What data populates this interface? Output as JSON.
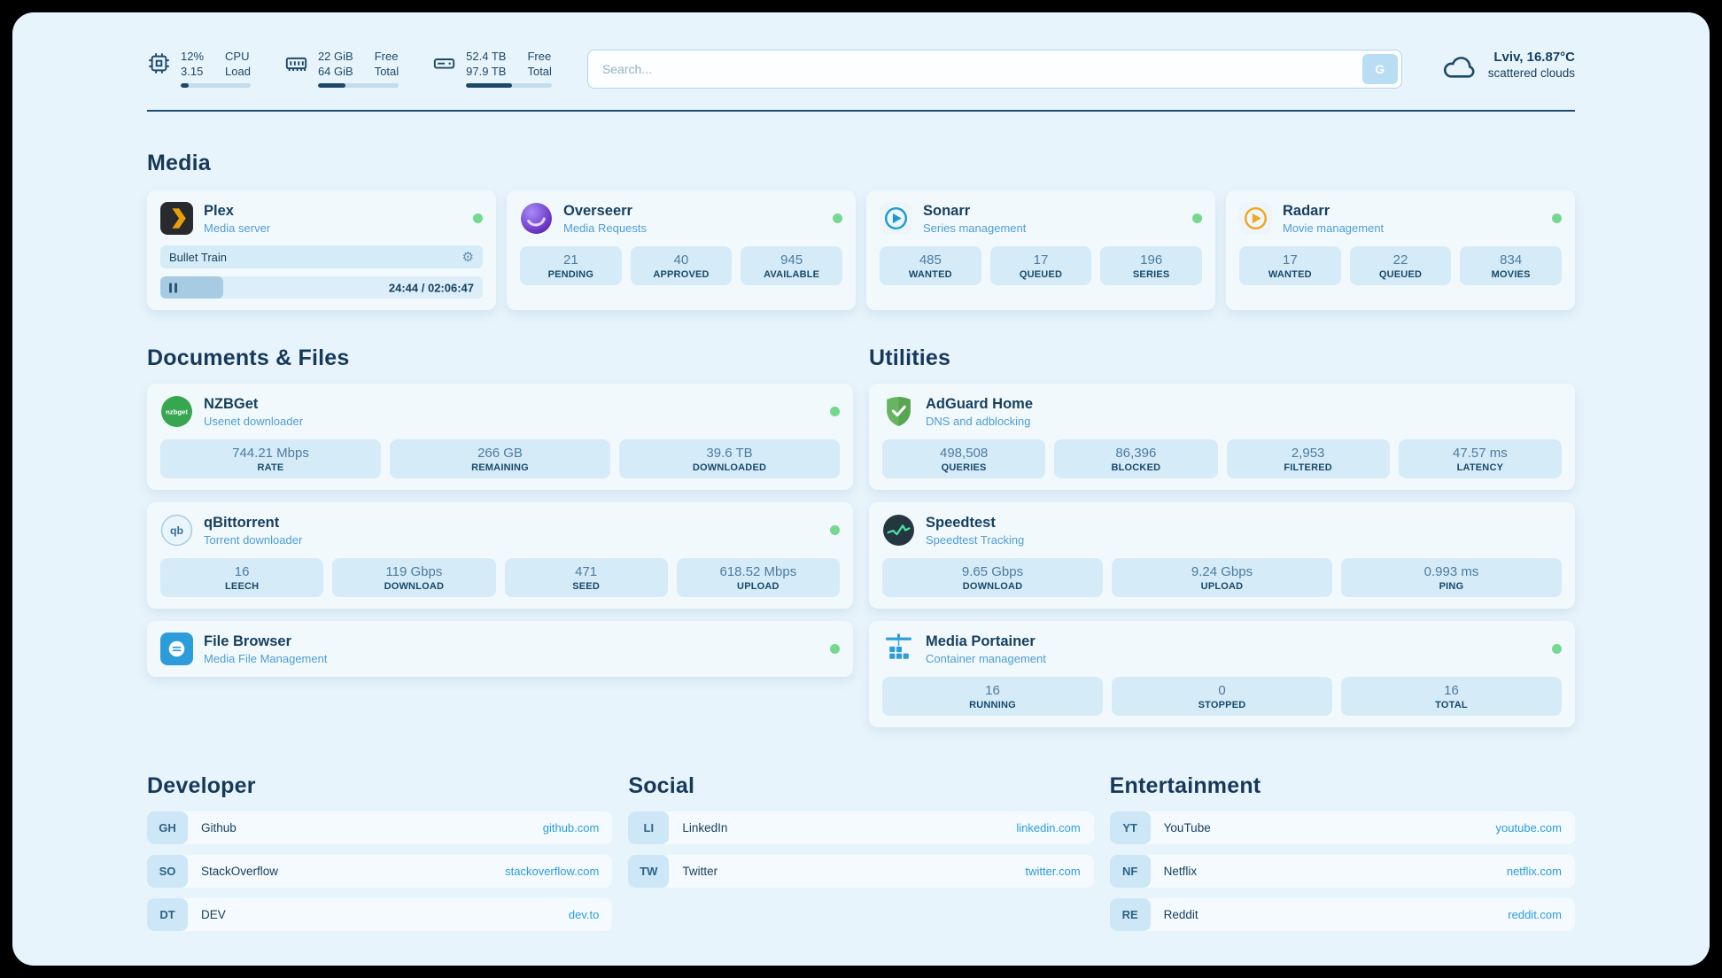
{
  "topbar": {
    "metrics": [
      {
        "values": [
          "12%",
          "3.15"
        ],
        "labels": [
          "CPU",
          "Load"
        ],
        "percent": 12
      },
      {
        "values": [
          "22 GiB",
          "64 GiB"
        ],
        "labels": [
          "Free",
          "Total"
        ],
        "percent": 34
      },
      {
        "values": [
          "52.4 TB",
          "97.9 TB"
        ],
        "labels": [
          "Free",
          "Total"
        ],
        "percent": 54
      }
    ],
    "search": {
      "placeholder": "Search...",
      "button_label": "G"
    },
    "weather": {
      "location": "Lviv, 16.87°C",
      "condition": "scattered clouds"
    }
  },
  "media": {
    "title": "Media",
    "plex": {
      "name": "Plex",
      "subtitle": "Media server",
      "now_playing": "Bullet Train",
      "time": "24:44 / 02:06:47",
      "progress_percent": 19.5
    },
    "overseerr": {
      "name": "Overseerr",
      "subtitle": "Media Requests",
      "stats": [
        {
          "value": "21",
          "label": "PENDING"
        },
        {
          "value": "40",
          "label": "APPROVED"
        },
        {
          "value": "945",
          "label": "AVAILABLE"
        }
      ]
    },
    "sonarr": {
      "name": "Sonarr",
      "subtitle": "Series management",
      "stats": [
        {
          "value": "485",
          "label": "WANTED"
        },
        {
          "value": "17",
          "label": "QUEUED"
        },
        {
          "value": "196",
          "label": "SERIES"
        }
      ]
    },
    "radarr": {
      "name": "Radarr",
      "subtitle": "Movie management",
      "stats": [
        {
          "value": "17",
          "label": "WANTED"
        },
        {
          "value": "22",
          "label": "QUEUED"
        },
        {
          "value": "834",
          "label": "MOVIES"
        }
      ]
    }
  },
  "documents": {
    "title": "Documents & Files",
    "nzbget": {
      "name": "NZBGet",
      "subtitle": "Usenet downloader",
      "stats": [
        {
          "value": "744.21 Mbps",
          "label": "RATE"
        },
        {
          "value": "266 GB",
          "label": "REMAINING"
        },
        {
          "value": "39.6 TB",
          "label": "DOWNLOADED"
        }
      ]
    },
    "qbittorrent": {
      "name": "qBittorrent",
      "subtitle": "Torrent downloader",
      "stats": [
        {
          "value": "16",
          "label": "LEECH"
        },
        {
          "value": "119 Gbps",
          "label": "DOWNLOAD"
        },
        {
          "value": "471",
          "label": "SEED"
        },
        {
          "value": "618.52 Mbps",
          "label": "UPLOAD"
        }
      ]
    },
    "filebrowser": {
      "name": "File Browser",
      "subtitle": "Media File Management"
    }
  },
  "utilities": {
    "title": "Utilities",
    "adguard": {
      "name": "AdGuard Home",
      "subtitle": "DNS and adblocking",
      "stats": [
        {
          "value": "498,508",
          "label": "QUERIES"
        },
        {
          "value": "86,396",
          "label": "BLOCKED"
        },
        {
          "value": "2,953",
          "label": "FILTERED"
        },
        {
          "value": "47.57 ms",
          "label": "LATENCY"
        }
      ]
    },
    "speedtest": {
      "name": "Speedtest",
      "subtitle": "Speedtest Tracking",
      "stats": [
        {
          "value": "9.65 Gbps",
          "label": "DOWNLOAD"
        },
        {
          "value": "9.24 Gbps",
          "label": "UPLOAD"
        },
        {
          "value": "0.993 ms",
          "label": "PING"
        }
      ]
    },
    "portainer": {
      "name": "Media Portainer",
      "subtitle": "Container management",
      "stats": [
        {
          "value": "16",
          "label": "RUNNING"
        },
        {
          "value": "0",
          "label": "STOPPED"
        },
        {
          "value": "16",
          "label": "TOTAL"
        }
      ]
    }
  },
  "bookmarks": {
    "developer": {
      "title": "Developer",
      "items": [
        {
          "tag": "GH",
          "name": "Github",
          "url": "github.com"
        },
        {
          "tag": "SO",
          "name": "StackOverflow",
          "url": "stackoverflow.com"
        },
        {
          "tag": "DT",
          "name": "DEV",
          "url": "dev.to"
        }
      ]
    },
    "social": {
      "title": "Social",
      "items": [
        {
          "tag": "LI",
          "name": "LinkedIn",
          "url": "linkedin.com"
        },
        {
          "tag": "TW",
          "name": "Twitter",
          "url": "twitter.com"
        }
      ]
    },
    "entertainment": {
      "title": "Entertainment",
      "items": [
        {
          "tag": "YT",
          "name": "YouTube",
          "url": "youtube.com"
        },
        {
          "tag": "NF",
          "name": "Netflix",
          "url": "netflix.com"
        },
        {
          "tag": "RE",
          "name": "Reddit",
          "url": "reddit.com"
        }
      ]
    }
  },
  "colors": {
    "accent": "#2d9cdb",
    "status_online": "#74d98e",
    "navy": "#1c4966"
  }
}
